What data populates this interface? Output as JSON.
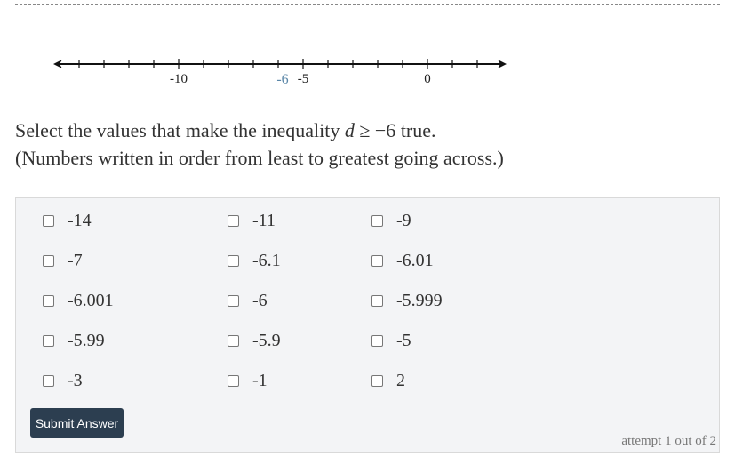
{
  "number_line": {
    "min": -16,
    "max": 3,
    "ticks_from": -14,
    "ticks_to": 2,
    "labels": [
      {
        "value": -10,
        "text": "-10"
      },
      {
        "value": -5,
        "text": "-5"
      },
      {
        "value": 0,
        "text": "0"
      }
    ],
    "highlight": {
      "value": -6,
      "text": "-6",
      "color": "#5b87a8"
    }
  },
  "question": {
    "prefix": "Select the values that make the inequality ",
    "var": "d",
    "rel": " ≥ −6",
    "suffix": " true.",
    "line2": "(Numbers written in order from least to greatest going across.)"
  },
  "options": [
    "-14",
    "-11",
    "-9",
    "-7",
    "-6.1",
    "-6.01",
    "-6.001",
    "-6",
    "-5.999",
    "-5.99",
    "-5.9",
    "-5",
    "-3",
    "-1",
    "2"
  ],
  "submit_label": "Submit Answer",
  "attempt": "attempt 1 out of 2"
}
